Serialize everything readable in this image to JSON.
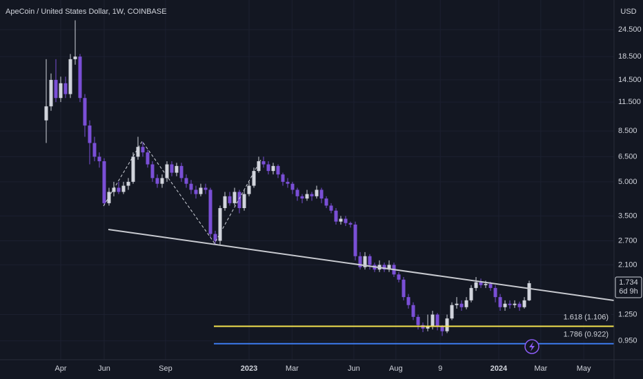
{
  "chart_data": {
    "type": "candlestick",
    "title": "ApeCoin / United States Dollar, 1W, COINBASE",
    "currency": "USD",
    "log_scale": true,
    "grid": true,
    "up_color": "#d1d4dc",
    "down_color": "#7a4fd6",
    "ylim": [
      0.78,
      33.4
    ],
    "yticks": [
      {
        "value": 24.5,
        "label": "24.500"
      },
      {
        "value": 18.5,
        "label": "18.500"
      },
      {
        "value": 14.5,
        "label": "14.500"
      },
      {
        "value": 11.5,
        "label": "11.500"
      },
      {
        "value": 8.5,
        "label": "8.500"
      },
      {
        "value": 6.5,
        "label": "6.500"
      },
      {
        "value": 5,
        "label": "5.000"
      },
      {
        "value": 3.5,
        "label": "3.500"
      },
      {
        "value": 2.7,
        "label": "2.700"
      },
      {
        "value": 2.1,
        "label": "2.100"
      },
      {
        "value": 1.25,
        "label": "1.250"
      },
      {
        "value": 0.95,
        "label": "0.950"
      }
    ],
    "xticks": [
      {
        "value": 3,
        "label": "Apr"
      },
      {
        "value": 12,
        "label": "Jun"
      },
      {
        "value": 24.7,
        "label": "Sep"
      },
      {
        "value": 42,
        "label": "2023"
      },
      {
        "value": 50.9,
        "label": "Mar"
      },
      {
        "value": 63.7,
        "label": "Jun"
      },
      {
        "value": 72.4,
        "label": "Aug"
      },
      {
        "value": 81.6,
        "label": "9"
      },
      {
        "value": 93.7,
        "label": "2024"
      },
      {
        "value": 102.4,
        "label": "Mar"
      },
      {
        "value": 111.3,
        "label": "May"
      }
    ],
    "open": [
      9.5,
      11,
      14.5,
      12,
      14,
      12.5,
      18,
      18.5,
      12,
      9,
      7.5,
      6.5,
      6.2,
      4.0,
      4.5,
      4.7,
      4.5,
      4.8,
      5.0,
      6.5,
      7.2,
      6.8,
      6.0,
      5.2,
      4.9,
      5.2,
      6.0,
      5.5,
      5.9,
      5.2,
      4.9,
      4.6,
      4.4,
      4.7,
      4.6,
      2.9,
      2.7,
      3.8,
      4.3,
      4.0,
      4.5,
      3.8,
      4.4,
      4.8,
      5.6,
      6.2,
      6.0,
      5.6,
      5.9,
      5.4,
      5.0,
      4.9,
      4.6,
      4.3,
      4.2,
      4.4,
      4.3,
      4.6,
      4.2,
      3.9,
      3.7,
      3.3,
      3.4,
      3.25,
      3.2,
      2.3,
      2.05,
      2.3,
      2.1,
      2.0,
      2.1,
      2.0,
      2.1,
      1.9,
      1.8,
      1.5,
      1.38,
      1.22,
      1.12,
      1.08,
      1.1,
      1.25,
      1.1,
      1.05,
      1.2,
      1.38,
      1.4,
      1.35,
      1.45,
      1.65,
      1.75,
      1.7,
      1.72,
      1.65,
      1.5,
      1.35,
      1.4,
      1.38,
      1.4,
      1.35,
      1.45
    ],
    "close": [
      11,
      14.5,
      12,
      14,
      12.5,
      18,
      18.5,
      12,
      9,
      7.5,
      6.5,
      6.2,
      4.0,
      4.5,
      4.7,
      4.5,
      4.8,
      5.0,
      6.5,
      7.2,
      6.8,
      6.0,
      5.2,
      4.9,
      5.2,
      6.0,
      5.5,
      5.9,
      5.2,
      4.9,
      4.6,
      4.4,
      4.7,
      4.6,
      2.9,
      2.7,
      3.8,
      4.3,
      4.0,
      4.5,
      3.8,
      4.4,
      4.8,
      5.6,
      6.2,
      6.0,
      5.6,
      5.9,
      5.4,
      5.0,
      4.9,
      4.6,
      4.3,
      4.2,
      4.4,
      4.3,
      4.6,
      4.2,
      3.9,
      3.7,
      3.3,
      3.4,
      3.25,
      3.2,
      2.3,
      2.05,
      2.3,
      2.1,
      2.0,
      2.1,
      2.0,
      2.1,
      1.9,
      1.8,
      1.5,
      1.38,
      1.22,
      1.12,
      1.08,
      1.1,
      1.25,
      1.1,
      1.05,
      1.2,
      1.38,
      1.4,
      1.35,
      1.45,
      1.65,
      1.75,
      1.7,
      1.72,
      1.65,
      1.5,
      1.35,
      1.4,
      1.38,
      1.4,
      1.35,
      1.45,
      1.734
    ],
    "high": [
      18,
      15.5,
      18,
      15,
      15,
      19,
      27,
      19,
      12.5,
      9.5,
      8,
      6.8,
      6.4,
      4.7,
      5.0,
      5.0,
      5.0,
      5.2,
      6.8,
      8.0,
      7.6,
      7.0,
      6.2,
      5.4,
      5.4,
      6.2,
      6.2,
      6.1,
      6.1,
      5.4,
      5.1,
      4.8,
      4.9,
      4.9,
      4.7,
      3.0,
      3.9,
      4.5,
      4.5,
      4.7,
      4.6,
      4.6,
      5.0,
      5.8,
      6.5,
      6.5,
      6.2,
      6.1,
      6.0,
      5.5,
      5.2,
      5.0,
      4.7,
      4.4,
      4.6,
      4.5,
      4.8,
      4.7,
      4.3,
      4.0,
      3.8,
      3.5,
      3.5,
      3.3,
      3.3,
      2.4,
      2.4,
      2.35,
      2.15,
      2.2,
      2.15,
      2.2,
      2.15,
      1.95,
      1.85,
      1.55,
      1.42,
      1.25,
      1.15,
      1.25,
      1.3,
      1.27,
      1.12,
      1.25,
      1.42,
      1.5,
      1.45,
      1.5,
      1.7,
      1.85,
      1.82,
      1.78,
      1.76,
      1.7,
      1.55,
      1.45,
      1.45,
      1.45,
      1.43,
      1.5,
      1.78
    ],
    "low": [
      7.5,
      10.5,
      11.5,
      11.5,
      12,
      12,
      17,
      11.5,
      8,
      6,
      6.2,
      5.8,
      3.9,
      3.9,
      4.3,
      4.4,
      4.4,
      4.6,
      4.9,
      6.3,
      6.5,
      5.8,
      5.0,
      4.7,
      4.7,
      5.0,
      5.3,
      5.3,
      5.0,
      4.7,
      4.4,
      4.2,
      4.3,
      4.4,
      2.8,
      2.6,
      2.6,
      3.7,
      3.9,
      3.9,
      3.6,
      3.7,
      4.3,
      4.7,
      5.5,
      5.8,
      5.4,
      5.4,
      5.2,
      4.8,
      4.7,
      4.4,
      4.1,
      4.0,
      4.1,
      4.1,
      4.2,
      4.0,
      3.8,
      3.6,
      3.2,
      3.2,
      3.15,
      3.1,
      2.2,
      2.0,
      2.0,
      2.0,
      1.95,
      1.95,
      1.95,
      1.95,
      1.85,
      1.75,
      1.45,
      1.33,
      1.18,
      1.07,
      1.04,
      1.05,
      1.07,
      1.06,
      1.0,
      1.03,
      1.18,
      1.33,
      1.3,
      1.32,
      1.42,
      1.6,
      1.65,
      1.65,
      1.6,
      1.42,
      1.3,
      1.3,
      1.33,
      1.34,
      1.3,
      1.33,
      1.44
    ],
    "levels": [
      {
        "label": "1.618 (1.106)",
        "value": 1.106,
        "color": "#f5e34f"
      },
      {
        "label": "1.786 (0.922)",
        "value": 0.922,
        "color": "#3d7cf0"
      }
    ],
    "last_price": 1.734,
    "countdown": "6d 9h"
  }
}
